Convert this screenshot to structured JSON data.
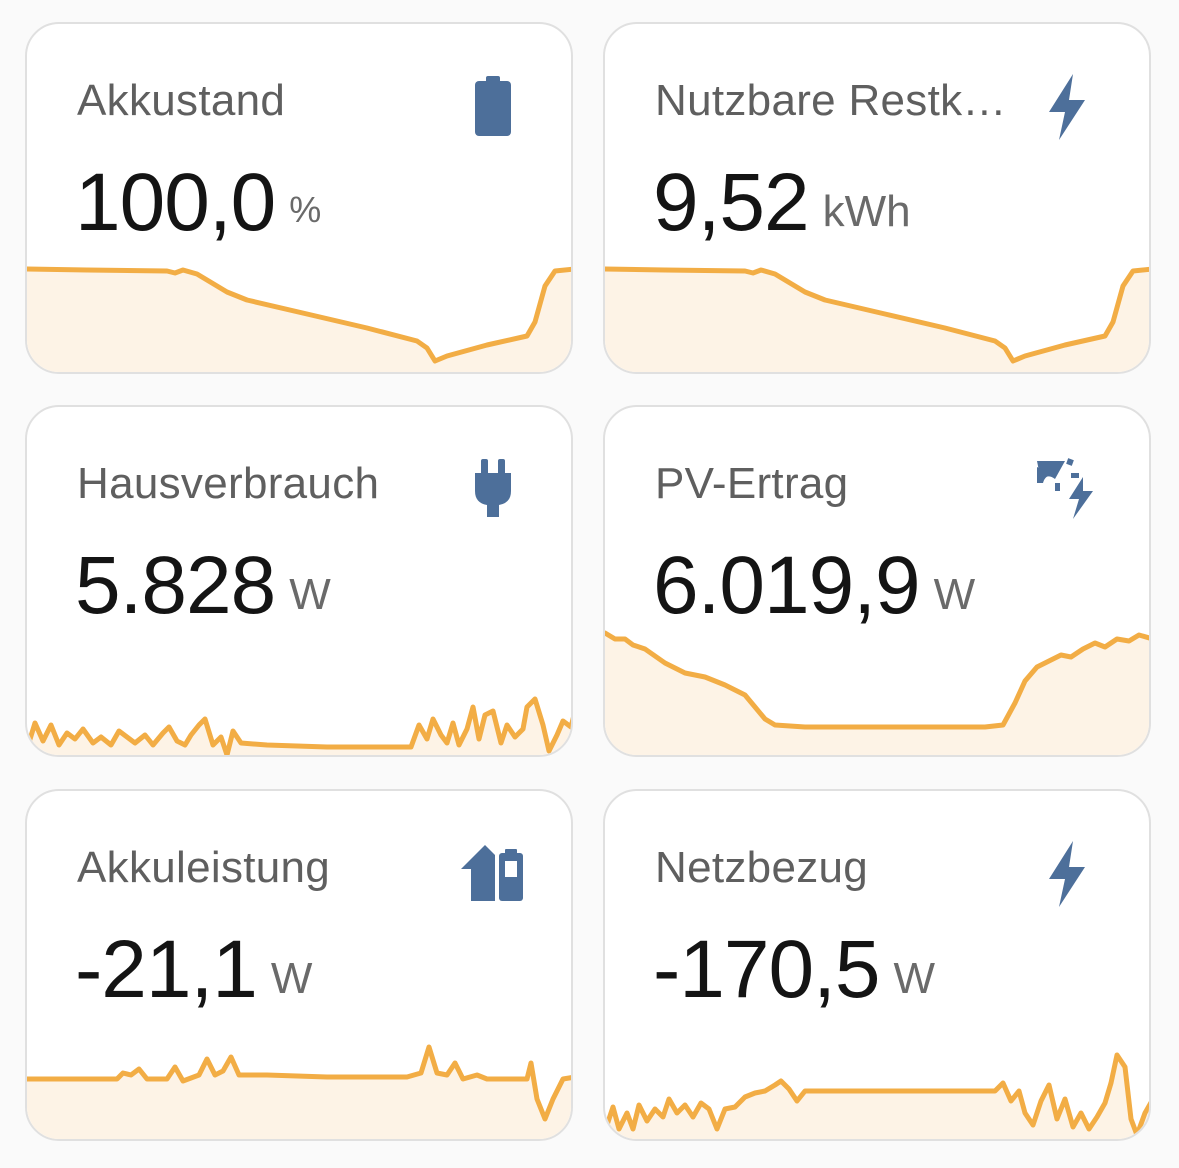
{
  "colors": {
    "icon": "#4d6f9a",
    "sparkline": "#f2ad45",
    "sparkline_fill": "#fdf3e6"
  },
  "cards": [
    {
      "id": "akkustand",
      "title": "Akkustand",
      "value": "100,0",
      "unit": "%",
      "icon": "battery-icon"
    },
    {
      "id": "restkapazitaet",
      "title": "Nutzbare Restk…",
      "value": "9,52",
      "unit": "kWh",
      "icon": "lightning-bolt-icon"
    },
    {
      "id": "hausverbrauch",
      "title": "Hausverbrauch",
      "value": "5.828",
      "unit": "W",
      "icon": "power-plug-icon"
    },
    {
      "id": "pv-ertrag",
      "title": "PV-Ertrag",
      "value": "6.019,9",
      "unit": "W",
      "icon": "solar-power-icon"
    },
    {
      "id": "akkuleistung",
      "title": "Akkuleistung",
      "value": "-21,1",
      "unit": "W",
      "icon": "home-battery-icon"
    },
    {
      "id": "netzbezug",
      "title": "Netzbezug",
      "value": "-170,5",
      "unit": "W",
      "icon": "lightning-bolt-icon"
    }
  ]
}
